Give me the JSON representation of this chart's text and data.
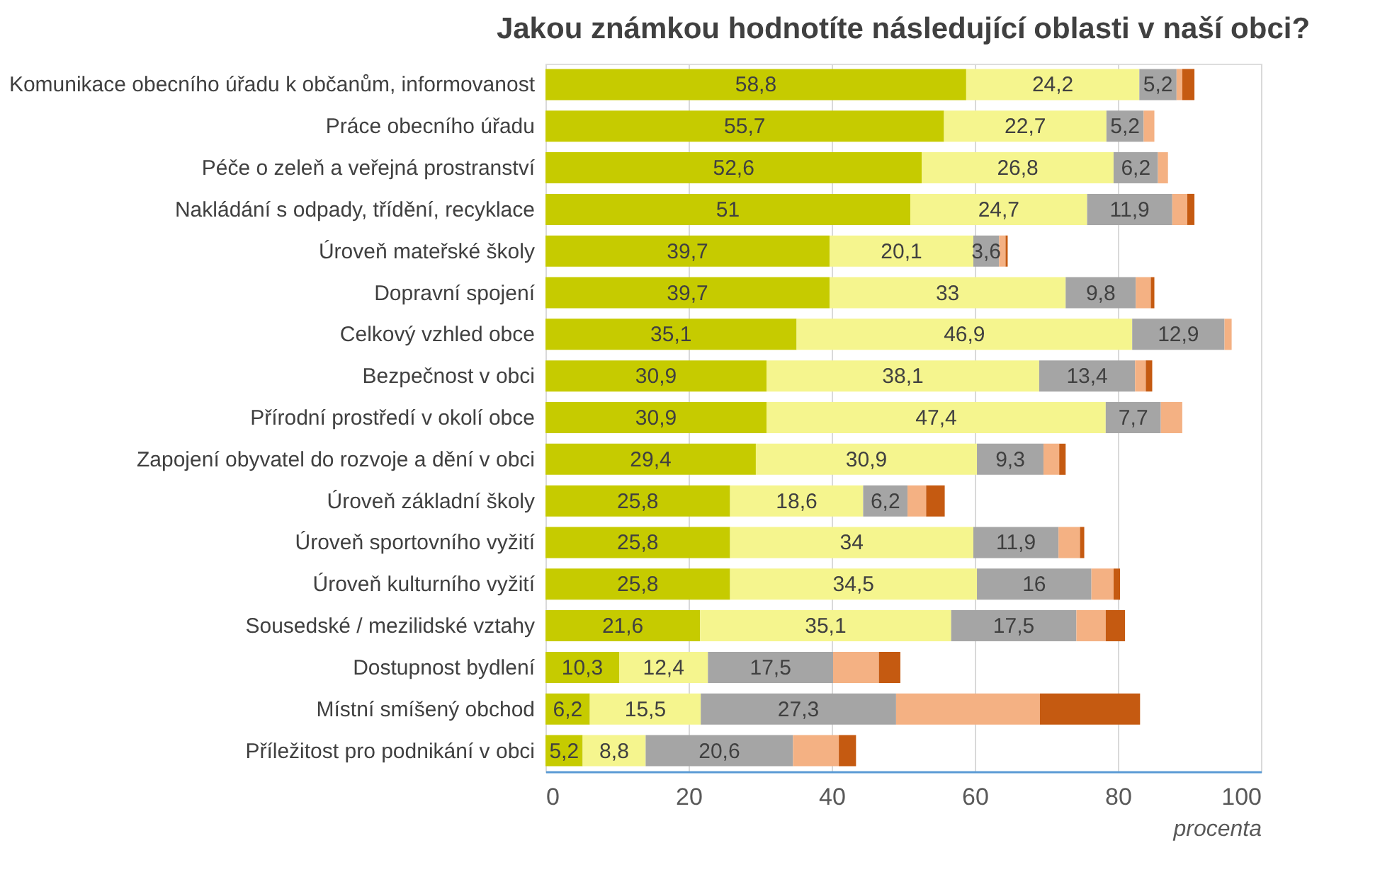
{
  "chart_data": {
    "type": "bar",
    "orientation": "horizontal",
    "stacked": true,
    "title": "Jakou známkou hodnotíte následující oblasti v naší obci?",
    "xlabel": "procenta",
    "categories": [
      "Komunikace obecního úřadu k občanům, informovanost",
      "Práce obecního úřadu",
      "Péče o zeleň a veřejná prostranství",
      "Nakládání s odpady, třídění, recyklace",
      "Úroveň mateřské školy",
      "Dopravní spojení",
      "Celkový vzhled obce",
      "Bezpečnost v obci",
      "Přírodní prostředí v okolí obce",
      "Zapojení obyvatel do rozvoje a dění v obci",
      "Úroveň základní školy",
      "Úroveň sportovního vyžití",
      "Úroveň kulturního vyžití",
      "Sousedské / mezilidské vztahy",
      "Dostupnost bydlení",
      "Místní smíšený obchod ",
      "Příležitost pro podnikání v obci"
    ],
    "series": [
      {
        "color": "#c6cb00",
        "values": [
          58.8,
          55.7,
          52.6,
          51,
          39.7,
          39.7,
          35.1,
          30.9,
          30.9,
          29.4,
          25.8,
          25.8,
          25.8,
          21.6,
          10.3,
          6.2,
          5.2
        ],
        "value_labels": [
          "58,8",
          "55,7",
          "52,6",
          "51",
          "39,7",
          "39,7",
          "35,1",
          "30,9",
          "30,9",
          "29,4",
          "25,8",
          "25,8",
          "25,8",
          "21,6",
          "10,3",
          "6,2",
          "5,2"
        ]
      },
      {
        "color": "#f5f58e",
        "values": [
          24.2,
          22.7,
          26.8,
          24.7,
          20.1,
          33,
          46.9,
          38.1,
          47.4,
          30.9,
          18.6,
          34,
          34.5,
          35.1,
          12.4,
          15.5,
          8.8
        ],
        "value_labels": [
          "24,2",
          "22,7",
          "26,8",
          "24,7",
          "20,1",
          "33",
          "46,9",
          "38,1",
          "47,4",
          "30,9",
          "18,6",
          "34",
          "34,5",
          "35,1",
          "12,4",
          "15,5",
          "8,8"
        ]
      },
      {
        "color": "#a5a5a5",
        "values": [
          5.2,
          5.2,
          6.2,
          11.9,
          3.6,
          9.8,
          12.9,
          13.4,
          7.7,
          9.3,
          6.2,
          11.9,
          16,
          17.5,
          17.5,
          27.3,
          20.6
        ],
        "value_labels": [
          "5,2",
          "5,2",
          "6,2",
          "11,9",
          "3,6",
          "9,8",
          "12,9",
          "13,4",
          "7,7",
          "9,3",
          "6,2",
          "11,9",
          "16",
          "17,5",
          "17,5",
          "27,3",
          "20,6"
        ]
      },
      {
        "color": "#f4b183",
        "values": [
          0.8,
          1.5,
          1.4,
          2.1,
          0.9,
          2.1,
          1.0,
          1.5,
          3.0,
          2.2,
          2.6,
          3.0,
          3.1,
          4.1,
          6.4,
          20.1,
          6.4
        ]
      },
      {
        "color": "#c55a11",
        "values": [
          1.7,
          0,
          0,
          1.0,
          0.3,
          0.5,
          0,
          0.9,
          0,
          0.9,
          2.6,
          0.6,
          0.9,
          2.7,
          3.0,
          14.0,
          2.4
        ]
      }
    ],
    "xlim": [
      0,
      100
    ],
    "xticks": [
      0,
      20,
      40,
      60,
      80,
      100
    ],
    "grid": "x"
  }
}
